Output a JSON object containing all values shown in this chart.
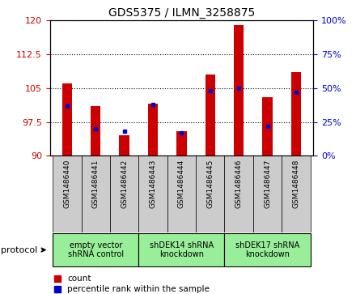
{
  "title": "GDS5375 / ILMN_3258875",
  "samples": [
    "GSM1486440",
    "GSM1486441",
    "GSM1486442",
    "GSM1486443",
    "GSM1486444",
    "GSM1486445",
    "GSM1486446",
    "GSM1486447",
    "GSM1486448"
  ],
  "count_values": [
    106.0,
    101.0,
    94.5,
    101.5,
    95.5,
    108.0,
    119.0,
    103.0,
    108.5
  ],
  "percentile_values": [
    37,
    20,
    18,
    38,
    17,
    48,
    50,
    22,
    47
  ],
  "ylim": [
    90,
    120
  ],
  "y2lim": [
    0,
    100
  ],
  "yticks": [
    90,
    97.5,
    105,
    112.5,
    120
  ],
  "y2ticks": [
    0,
    25,
    50,
    75,
    100
  ],
  "bar_bottom": 90,
  "bar_color": "#cc0000",
  "percentile_color": "#0000cc",
  "tick_bg_color": "#cccccc",
  "group_bg_color": "#99ee99",
  "groups": [
    {
      "label": "empty vector\nshRNA control",
      "start": 0,
      "end": 3
    },
    {
      "label": "shDEK14 shRNA\nknockdown",
      "start": 3,
      "end": 6
    },
    {
      "label": "shDEK17 shRNA\nknockdown",
      "start": 6,
      "end": 9
    }
  ],
  "protocol_label": "protocol",
  "legend_count_label": "count",
  "legend_percentile_label": "percentile rank within the sample",
  "bar_width": 0.35,
  "figsize": [
    4.4,
    3.63
  ],
  "dpi": 100
}
